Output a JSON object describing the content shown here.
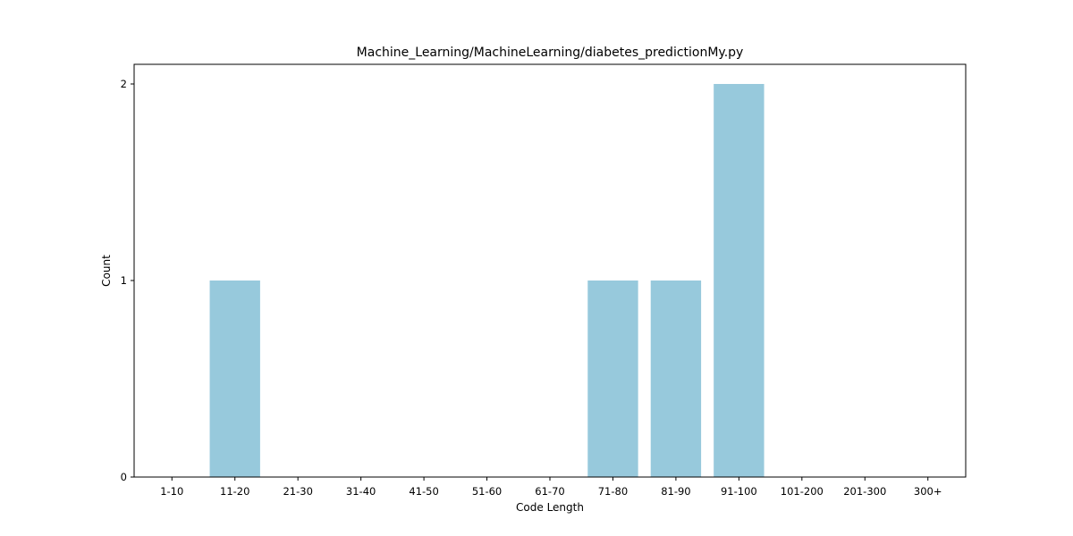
{
  "chart_data": {
    "type": "bar",
    "title": "Machine_Learning/MachineLearning/diabetes_predictionMy.py",
    "xlabel": "Code Length",
    "ylabel": "Count",
    "categories": [
      "1-10",
      "11-20",
      "21-30",
      "31-40",
      "41-50",
      "51-60",
      "61-70",
      "71-80",
      "81-90",
      "91-100",
      "101-200",
      "201-300",
      "300+"
    ],
    "values": [
      0,
      1,
      0,
      0,
      0,
      0,
      0,
      1,
      1,
      2,
      0,
      0,
      0
    ],
    "ylim": [
      0,
      2.1
    ],
    "yticks": [
      0,
      1,
      2
    ],
    "grid": false,
    "colors": {
      "bar": "#97c9dc",
      "axis": "#000000",
      "background": "#ffffff"
    }
  }
}
